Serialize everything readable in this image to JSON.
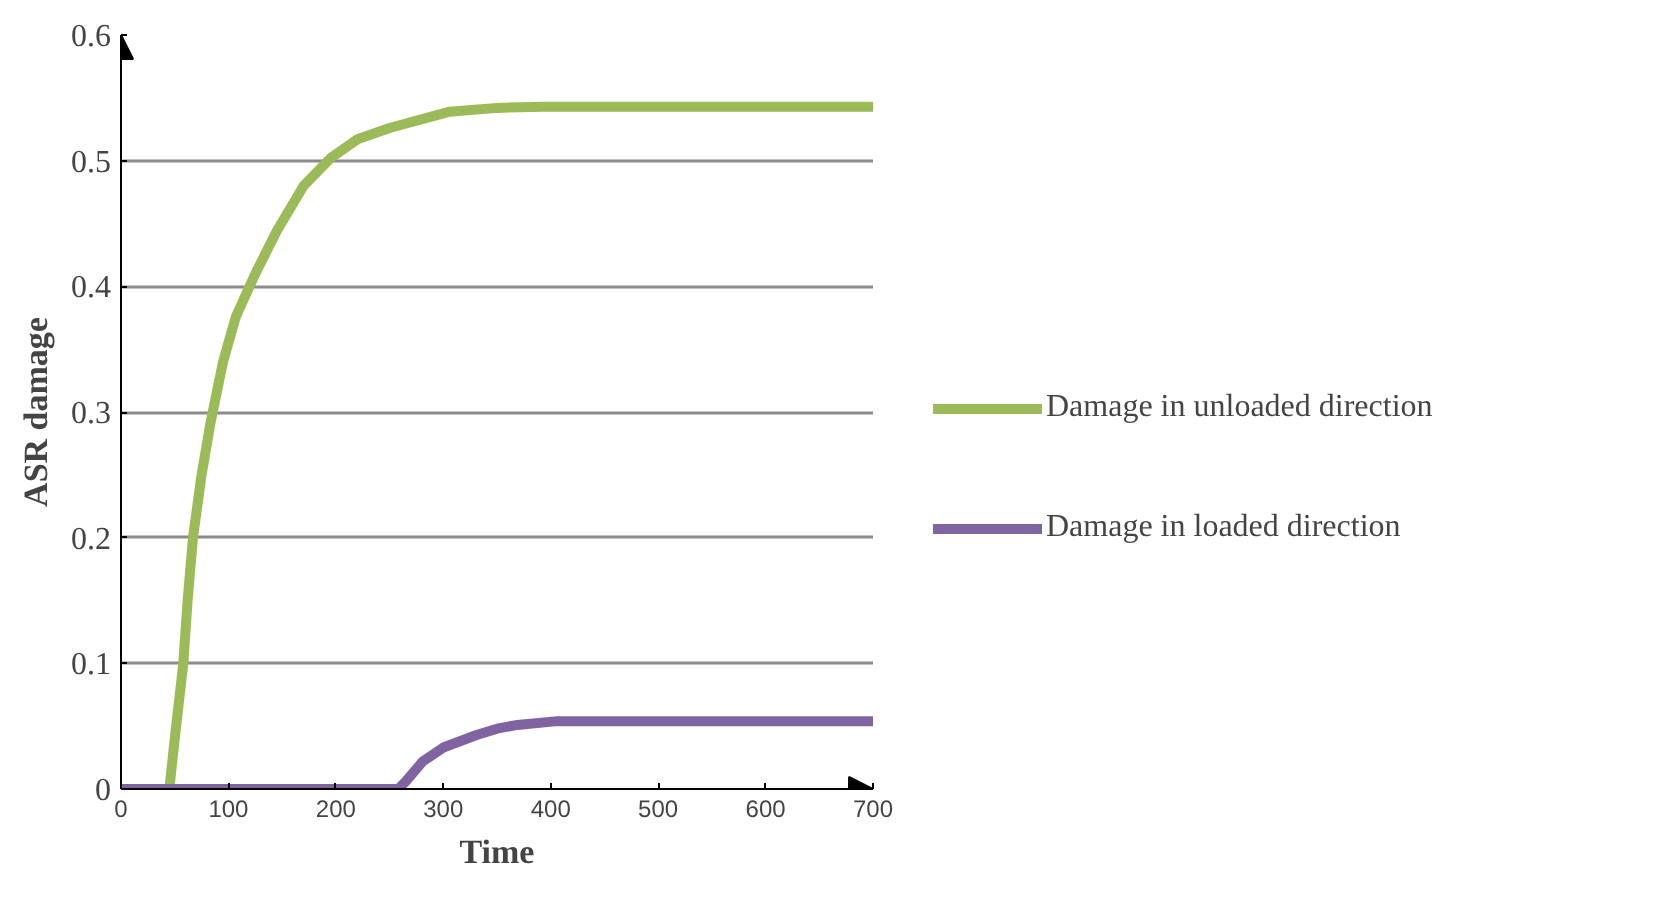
{
  "chart_data": {
    "type": "line",
    "xlabel": "Time",
    "ylabel": "ASR damage",
    "xlim": [
      0,
      700
    ],
    "ylim": [
      0,
      0.6
    ],
    "xticks": [
      0,
      100,
      200,
      300,
      400,
      500,
      600,
      700
    ],
    "yticks": [
      0,
      0.1,
      0.2,
      0.3,
      0.4,
      0.5,
      0.6
    ],
    "grid": "y",
    "legend": "right",
    "marker": "none",
    "line_style": "solid",
    "series": [
      {
        "name": "Damage in unloaded direction",
        "color": "#9bbb59",
        "x": [
          0,
          45,
          50,
          58,
          62,
          67,
          75,
          83,
          95,
          107,
          125,
          145,
          170,
          195,
          220,
          250,
          306,
          350,
          393,
          500,
          700
        ],
        "values": [
          0,
          0,
          0.04,
          0.1,
          0.15,
          0.2,
          0.25,
          0.29,
          0.34,
          0.376,
          0.41,
          0.444,
          0.48,
          0.502,
          0.517,
          0.526,
          0.539,
          0.542,
          0.543,
          0.543,
          0.543
        ]
      },
      {
        "name": "Damage in loaded direction",
        "color": "#8064a2",
        "x": [
          0,
          258,
          265,
          281,
          300,
          331,
          350,
          369,
          406,
          500,
          700
        ],
        "values": [
          0,
          0,
          0.006,
          0.022,
          0.033,
          0.043,
          0.048,
          0.051,
          0.054,
          0.054,
          0.054
        ]
      }
    ]
  }
}
